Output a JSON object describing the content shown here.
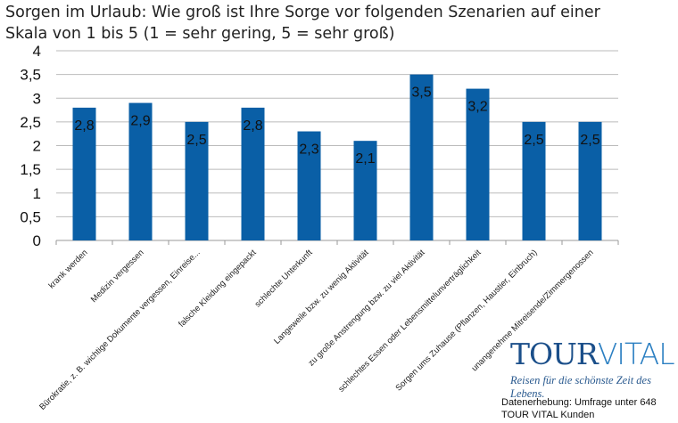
{
  "chart_data": {
    "type": "bar",
    "title": "Sorgen im Urlaub: Wie groß ist Ihre Sorge vor folgenden Szenarien auf einer Skala von 1 bis 5 (1 = sehr gering, 5 = sehr groß)",
    "categories": [
      "krank werden",
      "Medizin vergessen",
      "Bürokratie, z. B. wichtige Dokumente vergessen, Einreise...",
      "falsche Kleidung eingepackt",
      "schlechte Unterkunft",
      "Langeweile bzw. zu wenig Aktivität",
      "zu große Anstrengung bzw. zu viel Aktivität",
      "schlechtes Essen oder Lebensmittelunverträglichkeit",
      "Sorgen ums Zuhause (Pflanzen, Haustier, Einbruch)",
      "unangenehme Mitreisende/Zimmergenossen"
    ],
    "values": [
      2.8,
      2.9,
      2.5,
      2.8,
      2.3,
      2.1,
      3.5,
      3.2,
      2.5,
      2.5
    ],
    "data_labels": [
      "2,8",
      "2,9",
      "2,5",
      "2,8",
      "2,3",
      "2,1",
      "3,5",
      "3,2",
      "2,5",
      "2,5"
    ],
    "yticks": [
      "0",
      "0,5",
      "1",
      "1,5",
      "2",
      "2,5",
      "3",
      "3,5",
      "4"
    ],
    "ylim": [
      0,
      4
    ],
    "grid": true,
    "legend": "none",
    "bar_color": "#0a5fa6",
    "xlabel": "",
    "ylabel": ""
  },
  "logo": {
    "text_a": "TOUR",
    "text_b": "VITAL",
    "tagline": "Reisen für die schönste Zeit des Lebens."
  },
  "source": {
    "line1": "Datenerhebung: Umfrage unter 648",
    "line2": "TOUR VITAL Kunden"
  }
}
